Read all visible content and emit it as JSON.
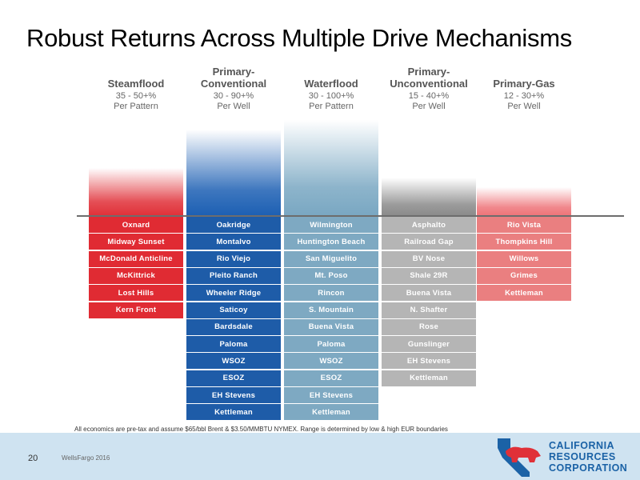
{
  "title": "Robust Returns Across Multiple Drive Mechanisms",
  "chart_data": {
    "type": "table",
    "title": "Robust Returns Across Multiple Drive Mechanisms",
    "columns": [
      {
        "name_lines": [
          "Steamflood"
        ],
        "range": "35 - 50+%",
        "basis": "Per Pattern",
        "return_low": 35,
        "return_high": 50,
        "bar_color": "#e03038",
        "cell_color": "#e02b33",
        "fields": [
          "Oxnard",
          "Midway Sunset",
          "McDonald Anticline",
          "McKittrick",
          "Lost Hills",
          "Kern Front"
        ]
      },
      {
        "name_lines": [
          "Primary-",
          "Conventional"
        ],
        "range": "30 - 90+%",
        "basis": "Per Well",
        "return_low": 30,
        "return_high": 90,
        "bar_color": "#1c5fb3",
        "cell_color": "#1e5ca8",
        "fields": [
          "Oakridge",
          "Montalvo",
          "Rio Viejo",
          "Pleito Ranch",
          "Wheeler Ridge",
          "Saticoy",
          "Bardsdale",
          "Paloma",
          "WSOZ",
          "ESOZ",
          "EH Stevens",
          "Kettleman"
        ]
      },
      {
        "name_lines": [
          "Waterflood"
        ],
        "range": "30 - 100+%",
        "basis": "Per Pattern",
        "return_low": 30,
        "return_high": 100,
        "bar_color": "#79a7c2",
        "cell_color": "#7ea9c2",
        "fields": [
          "Wilmington",
          "Huntington Beach",
          "San Miguelito",
          "Mt. Poso",
          "Rincon",
          "S. Mountain",
          "Buena Vista",
          "Paloma",
          "WSOZ",
          "ESOZ",
          "EH Stevens",
          "Kettleman"
        ]
      },
      {
        "name_lines": [
          "Primary-",
          "Unconventional"
        ],
        "range": "15 - 40+%",
        "basis": "Per Well",
        "return_low": 15,
        "return_high": 40,
        "bar_color": "#8a8a8a",
        "cell_color": "#b5b5b5",
        "fields": [
          "Asphalto",
          "Railroad Gap",
          "BV Nose",
          "Shale 29R",
          "Buena Vista",
          "N. Shafter",
          "Rose",
          "Gunslinger",
          "EH Stevens",
          "Kettleman"
        ]
      },
      {
        "name_lines": [
          "Primary-Gas"
        ],
        "range": "12 - 30+%",
        "basis": "Per Well",
        "return_low": 12,
        "return_high": 30,
        "bar_color": "#ee7378",
        "cell_color": "#ea7f80",
        "fields": [
          "Rio Vista",
          "Thompkins Hill",
          "Willows",
          "Grimes",
          "Kettleman"
        ]
      }
    ]
  },
  "footnote": "All economics are pre-tax and assume $65/bbl Brent & $3.50/MMBTU NYMEX. Range is determined by low & high EUR boundaries",
  "page_number": "20",
  "source": "WellsFargo 2016",
  "logo": [
    "CALIFORNIA",
    "RESOURCES",
    "CORPORATION"
  ],
  "colors": {
    "logo_blue": "#1b62a6",
    "logo_red": "#e03038",
    "footer_band": "#cfe3f1"
  }
}
